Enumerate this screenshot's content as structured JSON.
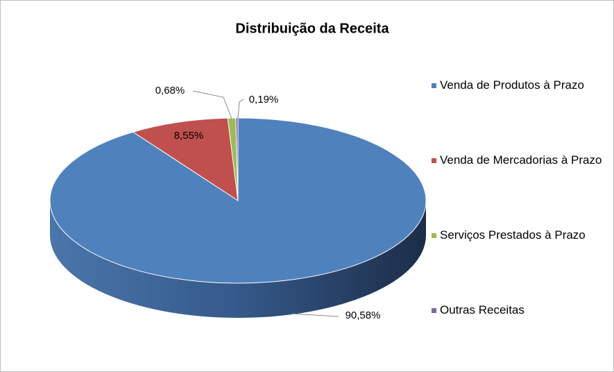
{
  "chart_data": {
    "type": "pie",
    "title": "Distribuição da Receita",
    "categories": [
      "Venda de Produtos à Prazo",
      "Venda de Mercadorias à Prazo",
      "Serviços Prestados à Prazo",
      "Outras Receitas"
    ],
    "values": [
      90.58,
      8.55,
      0.68,
      0.19
    ],
    "value_labels": [
      "90,58%",
      "8,55%",
      "0,68%",
      "0,19%"
    ],
    "colors": [
      "#4f81bd",
      "#c0504d",
      "#9bbb59",
      "#8064a2"
    ],
    "legend": "right"
  }
}
